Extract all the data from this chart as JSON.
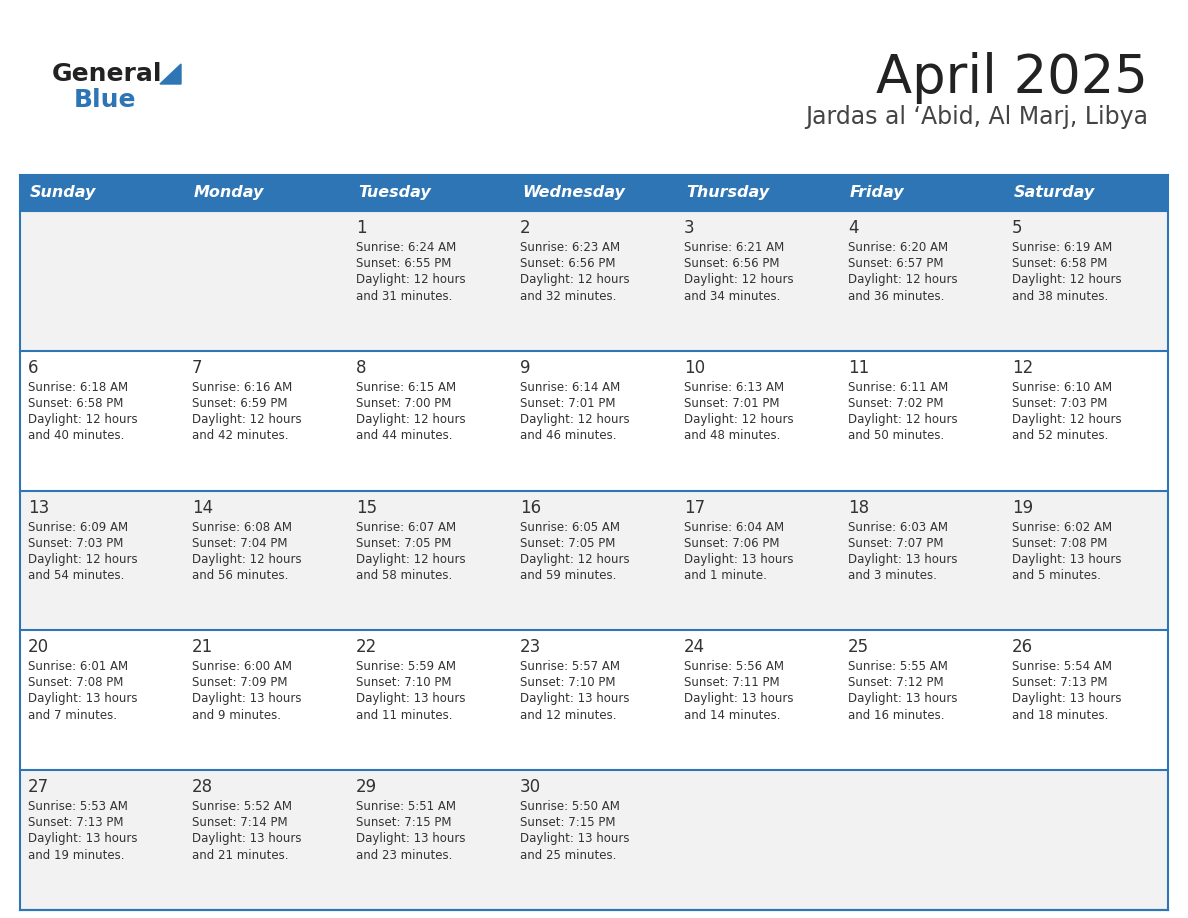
{
  "title": "April 2025",
  "subtitle": "Jardas al ‘Abid, Al Marj, Libya",
  "header_bg": "#2E75B6",
  "header_text": "#FFFFFF",
  "row_bg_odd": "#F2F2F2",
  "row_bg_even": "#FFFFFF",
  "border_color": "#2E75B6",
  "text_color": "#333333",
  "day_headers": [
    "Sunday",
    "Monday",
    "Tuesday",
    "Wednesday",
    "Thursday",
    "Friday",
    "Saturday"
  ],
  "weeks": [
    [
      {
        "date": "",
        "sunrise": "",
        "sunset": "",
        "daylight": ""
      },
      {
        "date": "",
        "sunrise": "",
        "sunset": "",
        "daylight": ""
      },
      {
        "date": "1",
        "sunrise": "Sunrise: 6:24 AM",
        "sunset": "Sunset: 6:55 PM",
        "daylight": "Daylight: 12 hours\nand 31 minutes."
      },
      {
        "date": "2",
        "sunrise": "Sunrise: 6:23 AM",
        "sunset": "Sunset: 6:56 PM",
        "daylight": "Daylight: 12 hours\nand 32 minutes."
      },
      {
        "date": "3",
        "sunrise": "Sunrise: 6:21 AM",
        "sunset": "Sunset: 6:56 PM",
        "daylight": "Daylight: 12 hours\nand 34 minutes."
      },
      {
        "date": "4",
        "sunrise": "Sunrise: 6:20 AM",
        "sunset": "Sunset: 6:57 PM",
        "daylight": "Daylight: 12 hours\nand 36 minutes."
      },
      {
        "date": "5",
        "sunrise": "Sunrise: 6:19 AM",
        "sunset": "Sunset: 6:58 PM",
        "daylight": "Daylight: 12 hours\nand 38 minutes."
      }
    ],
    [
      {
        "date": "6",
        "sunrise": "Sunrise: 6:18 AM",
        "sunset": "Sunset: 6:58 PM",
        "daylight": "Daylight: 12 hours\nand 40 minutes."
      },
      {
        "date": "7",
        "sunrise": "Sunrise: 6:16 AM",
        "sunset": "Sunset: 6:59 PM",
        "daylight": "Daylight: 12 hours\nand 42 minutes."
      },
      {
        "date": "8",
        "sunrise": "Sunrise: 6:15 AM",
        "sunset": "Sunset: 7:00 PM",
        "daylight": "Daylight: 12 hours\nand 44 minutes."
      },
      {
        "date": "9",
        "sunrise": "Sunrise: 6:14 AM",
        "sunset": "Sunset: 7:01 PM",
        "daylight": "Daylight: 12 hours\nand 46 minutes."
      },
      {
        "date": "10",
        "sunrise": "Sunrise: 6:13 AM",
        "sunset": "Sunset: 7:01 PM",
        "daylight": "Daylight: 12 hours\nand 48 minutes."
      },
      {
        "date": "11",
        "sunrise": "Sunrise: 6:11 AM",
        "sunset": "Sunset: 7:02 PM",
        "daylight": "Daylight: 12 hours\nand 50 minutes."
      },
      {
        "date": "12",
        "sunrise": "Sunrise: 6:10 AM",
        "sunset": "Sunset: 7:03 PM",
        "daylight": "Daylight: 12 hours\nand 52 minutes."
      }
    ],
    [
      {
        "date": "13",
        "sunrise": "Sunrise: 6:09 AM",
        "sunset": "Sunset: 7:03 PM",
        "daylight": "Daylight: 12 hours\nand 54 minutes."
      },
      {
        "date": "14",
        "sunrise": "Sunrise: 6:08 AM",
        "sunset": "Sunset: 7:04 PM",
        "daylight": "Daylight: 12 hours\nand 56 minutes."
      },
      {
        "date": "15",
        "sunrise": "Sunrise: 6:07 AM",
        "sunset": "Sunset: 7:05 PM",
        "daylight": "Daylight: 12 hours\nand 58 minutes."
      },
      {
        "date": "16",
        "sunrise": "Sunrise: 6:05 AM",
        "sunset": "Sunset: 7:05 PM",
        "daylight": "Daylight: 12 hours\nand 59 minutes."
      },
      {
        "date": "17",
        "sunrise": "Sunrise: 6:04 AM",
        "sunset": "Sunset: 7:06 PM",
        "daylight": "Daylight: 13 hours\nand 1 minute."
      },
      {
        "date": "18",
        "sunrise": "Sunrise: 6:03 AM",
        "sunset": "Sunset: 7:07 PM",
        "daylight": "Daylight: 13 hours\nand 3 minutes."
      },
      {
        "date": "19",
        "sunrise": "Sunrise: 6:02 AM",
        "sunset": "Sunset: 7:08 PM",
        "daylight": "Daylight: 13 hours\nand 5 minutes."
      }
    ],
    [
      {
        "date": "20",
        "sunrise": "Sunrise: 6:01 AM",
        "sunset": "Sunset: 7:08 PM",
        "daylight": "Daylight: 13 hours\nand 7 minutes."
      },
      {
        "date": "21",
        "sunrise": "Sunrise: 6:00 AM",
        "sunset": "Sunset: 7:09 PM",
        "daylight": "Daylight: 13 hours\nand 9 minutes."
      },
      {
        "date": "22",
        "sunrise": "Sunrise: 5:59 AM",
        "sunset": "Sunset: 7:10 PM",
        "daylight": "Daylight: 13 hours\nand 11 minutes."
      },
      {
        "date": "23",
        "sunrise": "Sunrise: 5:57 AM",
        "sunset": "Sunset: 7:10 PM",
        "daylight": "Daylight: 13 hours\nand 12 minutes."
      },
      {
        "date": "24",
        "sunrise": "Sunrise: 5:56 AM",
        "sunset": "Sunset: 7:11 PM",
        "daylight": "Daylight: 13 hours\nand 14 minutes."
      },
      {
        "date": "25",
        "sunrise": "Sunrise: 5:55 AM",
        "sunset": "Sunset: 7:12 PM",
        "daylight": "Daylight: 13 hours\nand 16 minutes."
      },
      {
        "date": "26",
        "sunrise": "Sunrise: 5:54 AM",
        "sunset": "Sunset: 7:13 PM",
        "daylight": "Daylight: 13 hours\nand 18 minutes."
      }
    ],
    [
      {
        "date": "27",
        "sunrise": "Sunrise: 5:53 AM",
        "sunset": "Sunset: 7:13 PM",
        "daylight": "Daylight: 13 hours\nand 19 minutes."
      },
      {
        "date": "28",
        "sunrise": "Sunrise: 5:52 AM",
        "sunset": "Sunset: 7:14 PM",
        "daylight": "Daylight: 13 hours\nand 21 minutes."
      },
      {
        "date": "29",
        "sunrise": "Sunrise: 5:51 AM",
        "sunset": "Sunset: 7:15 PM",
        "daylight": "Daylight: 13 hours\nand 23 minutes."
      },
      {
        "date": "30",
        "sunrise": "Sunrise: 5:50 AM",
        "sunset": "Sunset: 7:15 PM",
        "daylight": "Daylight: 13 hours\nand 25 minutes."
      },
      {
        "date": "",
        "sunrise": "",
        "sunset": "",
        "daylight": ""
      },
      {
        "date": "",
        "sunrise": "",
        "sunset": "",
        "daylight": ""
      },
      {
        "date": "",
        "sunrise": "",
        "sunset": "",
        "daylight": ""
      }
    ]
  ],
  "logo_general_color": "#222222",
  "logo_blue_color": "#2E75B6",
  "logo_triangle_color": "#2E75B6",
  "title_color": "#222222",
  "subtitle_color": "#444444",
  "title_fontsize": 38,
  "subtitle_fontsize": 17,
  "header_fontsize": 11.5,
  "date_fontsize": 12,
  "info_fontsize": 8.5
}
